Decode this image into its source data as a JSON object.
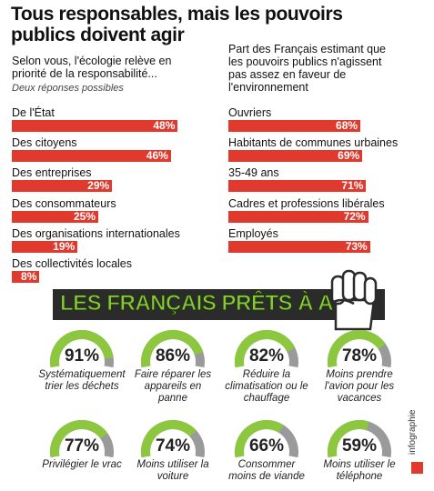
{
  "title": "Tous responsables, mais les pouvoirs publics doivent agir",
  "chart_data": [
    {
      "type": "hbar",
      "title": "Selon vous, l'écologie relève en priorité de la responsabilité...",
      "subtitle": "Deux réponses possibles",
      "categories": [
        "De l'État",
        "Des citoyens",
        "Des entreprises",
        "Des consommateurs",
        "Des organisations internationales",
        "Des collectivités locales"
      ],
      "values": [
        48,
        46,
        29,
        25,
        19,
        8
      ],
      "value_labels": [
        "48%",
        "46%",
        "29%",
        "25%",
        "19%",
        "8%"
      ],
      "color": "#e03a2f",
      "xlim": [
        0,
        50
      ]
    },
    {
      "type": "hbar",
      "title": "Part des Français estimant que les pouvoirs publics n'agissent pas assez en faveur de l'environnement",
      "categories": [
        "Ouvriers",
        "Habitants de communes urbaines",
        "35-49 ans",
        "Cadres et professions libérales",
        "Employés"
      ],
      "values": [
        68,
        69,
        71,
        72,
        73
      ],
      "value_labels": [
        "68%",
        "69%",
        "71%",
        "72%",
        "73%"
      ],
      "color": "#e03a2f",
      "xlim": [
        0,
        75
      ]
    },
    {
      "type": "gauge",
      "title": "LES FRANÇAIS PRÊTS À AGIR",
      "categories": [
        "Systématiquement trier les déchets",
        "Faire réparer les appareils en panne",
        "Réduire la climatisation ou le chauffage",
        "Moins prendre l'avion pour les vacances",
        "Privilégier le vrac",
        "Moins utiliser la voiture",
        "Consommer moins de viande",
        "Moins utiliser le téléphone"
      ],
      "values": [
        91,
        86,
        82,
        78,
        77,
        74,
        66,
        59
      ],
      "value_labels": [
        "91%",
        "86%",
        "82%",
        "78%",
        "77%",
        "74%",
        "66%",
        "59%"
      ],
      "color": "#8dc63f",
      "track_color": "#9a9a9a",
      "ylim": [
        0,
        100
      ]
    }
  ],
  "credit": "infographie"
}
